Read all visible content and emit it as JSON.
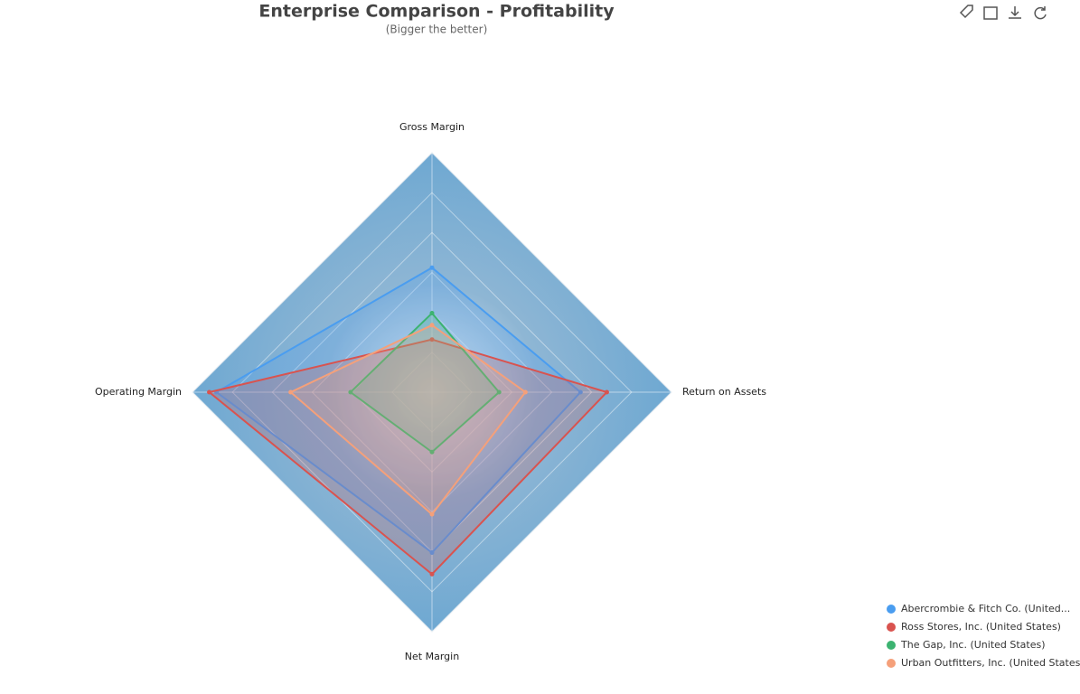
{
  "chart_data": {
    "type": "radar",
    "title": "Enterprise Comparison - Profitability",
    "subtitle": "(Bigger the better)",
    "indicators": [
      "Gross Margin",
      "Return on Assets",
      "Net Margin",
      "Operating Margin"
    ],
    "ylim": [
      0,
      1
    ],
    "series": [
      {
        "name": "Abercrombie & Fitch Co. (United...",
        "color": "#4a9df0",
        "values": [
          0.52,
          0.62,
          0.67,
          0.9
        ]
      },
      {
        "name": "Ross Stores, Inc. (United States)",
        "color": "#d9534f",
        "values": [
          0.22,
          0.73,
          0.76,
          0.93
        ]
      },
      {
        "name": "The Gap, Inc. (United States)",
        "color": "#3cb371",
        "values": [
          0.33,
          0.28,
          0.25,
          0.34
        ]
      },
      {
        "name": "Urban Outfitters, Inc. (United States)",
        "color": "#f5a07a",
        "values": [
          0.28,
          0.39,
          0.51,
          0.59
        ]
      }
    ]
  }
}
